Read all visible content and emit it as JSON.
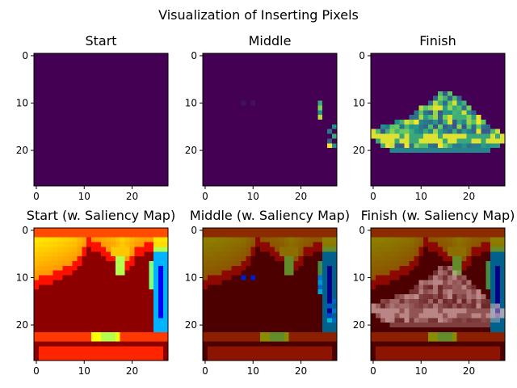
{
  "figure": {
    "title": "Visualization of Inserting Pixels"
  },
  "colors": {
    "viridis_low": "#440154",
    "viridis_mid": "#21918c",
    "viridis_high": "#fde725",
    "overlay_dark": "#5a0000",
    "hot_red": "#8b0000"
  },
  "chart_data": [
    {
      "type": "heatmap",
      "title": "Start",
      "colormap": "viridis",
      "xlim": [
        0,
        28
      ],
      "ylim": [
        28,
        0
      ],
      "xticks": [
        "0",
        "10",
        "20"
      ],
      "yticks": [
        "0",
        "10",
        "20"
      ],
      "description_values": "all pixels zero (empty image)"
    },
    {
      "type": "heatmap",
      "title": "Middle",
      "colormap": "viridis",
      "xlim": [
        0,
        28
      ],
      "ylim": [
        28,
        0
      ],
      "xticks": [
        "0",
        "10",
        "20"
      ],
      "yticks": [
        "0",
        "10",
        "20"
      ],
      "inserted_pixels": [
        [
          24,
          10,
          0.6
        ],
        [
          24,
          11,
          0.8
        ],
        [
          24,
          12,
          0.5
        ],
        [
          24,
          13,
          0.9
        ],
        [
          27,
          15,
          0.5
        ],
        [
          26,
          16,
          0.4
        ],
        [
          27,
          17,
          0.6
        ],
        [
          26,
          18,
          0.3
        ],
        [
          26,
          19,
          1.0
        ],
        [
          27,
          19,
          0.5
        ],
        [
          10,
          10,
          0.05
        ],
        [
          8,
          10,
          0.05
        ]
      ]
    },
    {
      "type": "heatmap",
      "title": "Finish",
      "colormap": "viridis",
      "xlim": [
        0,
        28
      ],
      "ylim": [
        28,
        0
      ],
      "xticks": [
        "0",
        "10",
        "20"
      ],
      "yticks": [
        "0",
        "10",
        "20"
      ],
      "shape": "sneaker"
    },
    {
      "type": "heatmap",
      "title": "Start (w. Saliency Map)",
      "colormap": "jet",
      "xlim": [
        0,
        28
      ],
      "ylim": [
        28,
        0
      ],
      "xticks": [
        "0",
        "10",
        "20"
      ],
      "yticks": [
        "0",
        "10",
        "20"
      ]
    },
    {
      "type": "heatmap",
      "title": "Middle (w. Saliency Map)",
      "colormap": "jet",
      "xlim": [
        0,
        28
      ],
      "ylim": [
        28,
        0
      ],
      "xticks": [
        "0",
        "10",
        "20"
      ],
      "yticks": [
        "0",
        "10",
        "20"
      ]
    },
    {
      "type": "heatmap",
      "title": "Finish (w. Saliency Map)",
      "colormap": "jet",
      "xlim": [
        0,
        28
      ],
      "ylim": [
        28,
        0
      ],
      "xticks": [
        "0",
        "10",
        "20"
      ],
      "yticks": [
        "0",
        "10",
        "20"
      ]
    }
  ]
}
